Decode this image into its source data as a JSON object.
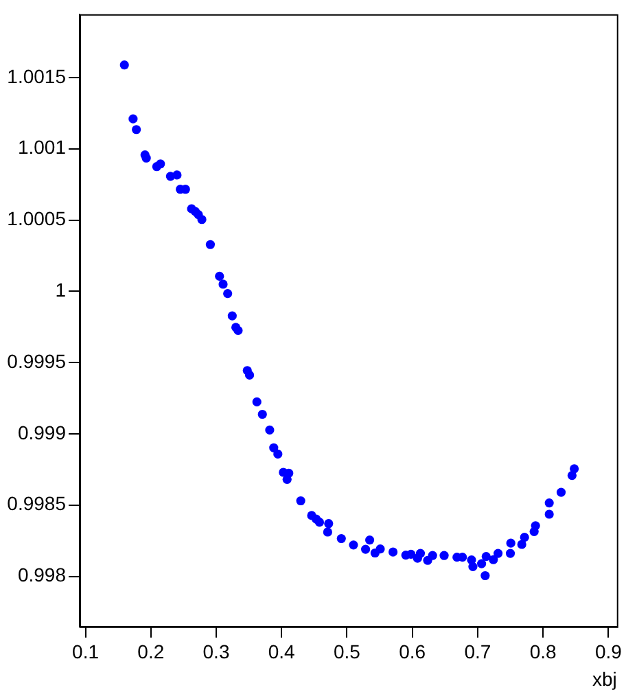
{
  "chart_data": {
    "type": "scatter",
    "xlabel": "xbj",
    "marker": "circle",
    "grid": false,
    "legend": false,
    "xlim": [
      0.091,
      0.913
    ],
    "ylim": [
      0.997647,
      1.001944
    ],
    "xticks": [
      0.1,
      0.2,
      0.3,
      0.4,
      0.5,
      0.6,
      0.7,
      0.8,
      0.9
    ],
    "yticks": [
      0.998,
      0.9985,
      0.999,
      0.9995,
      1,
      1.0005,
      1.001,
      1.0015
    ],
    "series": [
      {
        "color": "#0000ff",
        "x": [
          0.1595,
          0.1728,
          0.1778,
          0.191,
          0.193,
          0.209,
          0.2147,
          0.23,
          0.24,
          0.245,
          0.253,
          0.2623,
          0.268,
          0.2727,
          0.278,
          0.291,
          0.305,
          0.3105,
          0.3175,
          0.3245,
          0.33,
          0.3335,
          0.3475,
          0.351,
          0.3622,
          0.3706,
          0.3818,
          0.388,
          0.3943,
          0.4027,
          0.411,
          0.4084,
          0.4293,
          0.446,
          0.453,
          0.458,
          0.472,
          0.4705,
          0.4914,
          0.51,
          0.5285,
          0.5348,
          0.543,
          0.551,
          0.5705,
          0.59,
          0.598,
          0.608,
          0.6124,
          0.6235,
          0.631,
          0.6487,
          0.6683,
          0.6767,
          0.6906,
          0.6927,
          0.706,
          0.7115,
          0.713,
          0.724,
          0.7312,
          0.75,
          0.7507,
          0.7675,
          0.7717,
          0.7864,
          0.7885,
          0.8095,
          0.8095,
          0.8277,
          0.8444,
          0.8478
        ],
        "values": [
          1.001588,
          1.00121,
          1.001135,
          1.000957,
          1.000935,
          1.000875,
          1.000894,
          1.000807,
          1.000816,
          1.000716,
          1.000716,
          1.000579,
          1.00056,
          1.000538,
          1.000504,
          1.000328,
          1.000106,
          1.00005,
          0.999984,
          0.999828,
          0.999747,
          0.999725,
          0.999444,
          0.999412,
          0.999224,
          0.999137,
          0.999027,
          0.998902,
          0.998858,
          0.99873,
          0.998724,
          0.99868,
          0.99853,
          0.998427,
          0.998402,
          0.99838,
          0.99837,
          0.998311,
          0.998265,
          0.99822,
          0.99819,
          0.998255,
          0.998164,
          0.998192,
          0.998171,
          0.998149,
          0.998155,
          0.998127,
          0.998161,
          0.998112,
          0.998146,
          0.998146,
          0.998134,
          0.998134,
          0.998115,
          0.998068,
          0.998089,
          0.998005,
          0.998139,
          0.998117,
          0.998161,
          0.998161,
          0.998233,
          0.998224,
          0.998274,
          0.998314,
          0.998355,
          0.998515,
          0.998436,
          0.99859,
          0.998708,
          0.998755
        ]
      }
    ]
  }
}
